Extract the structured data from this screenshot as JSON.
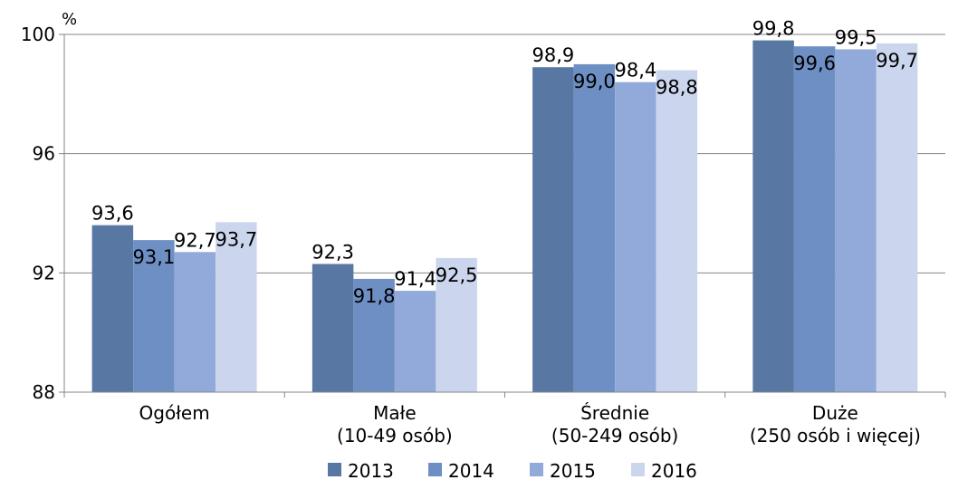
{
  "chart_data": {
    "type": "bar",
    "unit": "%",
    "categories": [
      [
        "Ogółem"
      ],
      [
        "Małe",
        "(10-49 osób)"
      ],
      [
        "Średnie",
        "(50-249 osób)"
      ],
      [
        "Duże",
        "(250 osób i więcej)"
      ]
    ],
    "series": [
      {
        "name": "2013",
        "color": "#5977A3",
        "values": [
          93.6,
          92.3,
          98.9,
          99.8
        ]
      },
      {
        "name": "2014",
        "color": "#6E8FC4",
        "values": [
          93.1,
          91.8,
          99.0,
          99.6
        ]
      },
      {
        "name": "2015",
        "color": "#92AADA",
        "values": [
          92.7,
          91.4,
          98.4,
          99.5
        ]
      },
      {
        "name": "2016",
        "color": "#CBD6EE",
        "values": [
          93.7,
          92.5,
          98.8,
          99.7
        ]
      }
    ],
    "data_labels": [
      [
        "93,6",
        "92,3",
        "98,9",
        "99,8"
      ],
      [
        "93,1",
        "91,8",
        "99,0",
        "99,6"
      ],
      [
        "92,7",
        "91,4",
        "98,4",
        "99,5"
      ],
      [
        "93,7",
        "92,5",
        "98,8",
        "99,7"
      ]
    ],
    "yticks": [
      88,
      92,
      96,
      100
    ],
    "ylim": [
      88,
      100
    ],
    "grid": true,
    "legend_position": "bottom"
  }
}
